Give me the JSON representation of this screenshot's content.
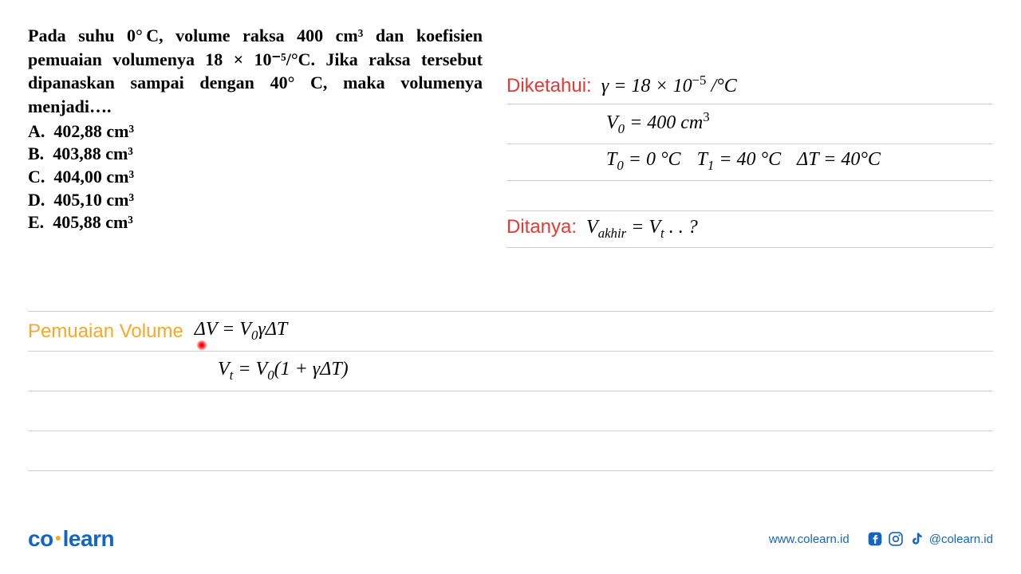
{
  "question": {
    "text_html": "Pada suhu 0°&thinsp;C, volume raksa 400 cm³ dan koefisien pemuaian volumenya 18 × 10⁻⁵/°C. Jika raksa tersebut dipanaskan sampai dengan 40° C, maka volumenya menjadi….",
    "options": {
      "A": "402,88 cm³",
      "B": "403,88 cm³",
      "C": "404,00 cm³",
      "D": "405,10 cm³",
      "E": "405,88 cm³"
    }
  },
  "known": {
    "label": "Diketahui:",
    "gamma_html": "γ = 18 × 10<sup>−5</sup> /°C",
    "v0_html": "V<sub>0</sub> = 400 <span class='rm'></span>cm<sup>3</sup>",
    "t0_html": "T<sub>0</sub> = 0 °C",
    "t1_html": "T<sub>1</sub> = 40 °C",
    "dt_html": "ΔT = 40°C"
  },
  "asked": {
    "label": "Ditanya:",
    "expr_html": "V<sub>akhir</sub> = V<sub>t</sub> . . ?"
  },
  "section": {
    "title": "Pemuaian Volume",
    "formula1_html": "ΔV = V<sub>0</sub>γΔT",
    "formula2_html": "V<sub>t</sub> = V<sub>0</sub>(1 + γΔT)"
  },
  "footer": {
    "url": "www.colearn.id",
    "handle": "@colearn.id",
    "logo_co": "co",
    "logo_learn": "learn"
  },
  "colors": {
    "red": "#e53935",
    "yellow": "#f9a825",
    "blue": "#1565c0",
    "rule": "#d0d0d0"
  }
}
